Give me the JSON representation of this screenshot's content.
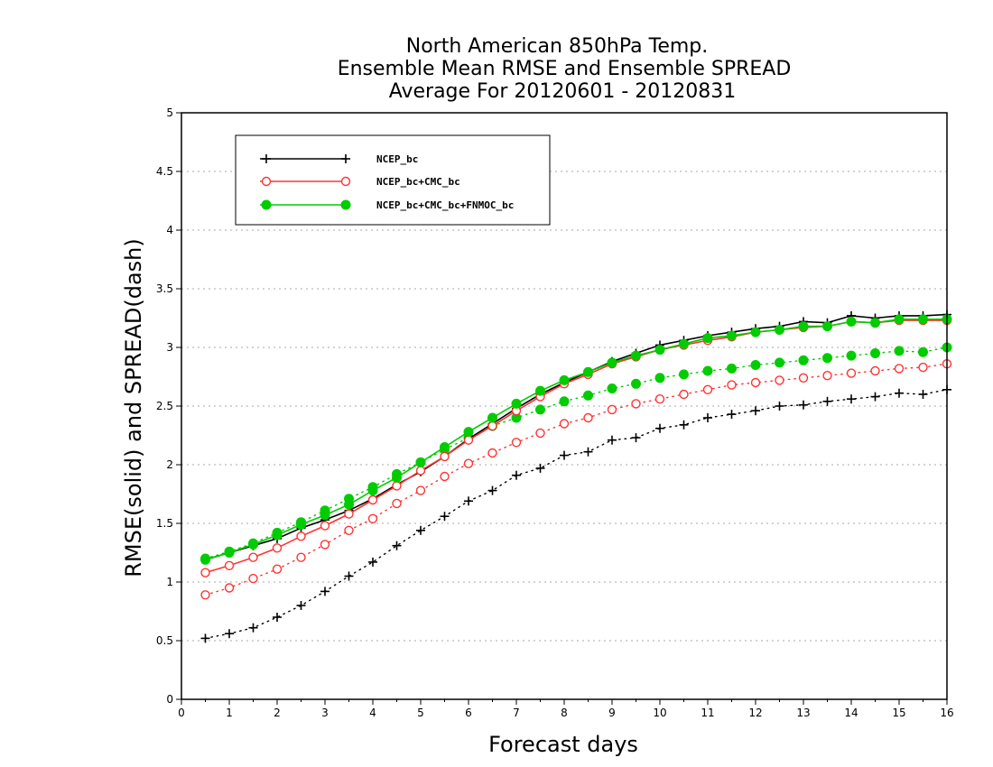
{
  "chart_data": {
    "type": "line",
    "title": [
      "North American 850hPa Temp.",
      "Ensemble Mean RMSE and Ensemble SPREAD",
      "Average For 20120601 - 20120831"
    ],
    "xlabel": "Forecast days",
    "ylabel": "RMSE(solid) and SPREAD(dash)",
    "xlim": [
      0,
      16
    ],
    "ylim": [
      0,
      5
    ],
    "xticks": [
      "0",
      "1",
      "2",
      "3",
      "4",
      "5",
      "6",
      "7",
      "8",
      "9",
      "10",
      "11",
      "12",
      "13",
      "14",
      "15",
      "16"
    ],
    "yticks": [
      "0",
      "0.5",
      "1",
      "1.5",
      "2",
      "2.5",
      "3",
      "3.5",
      "4",
      "4.5",
      "5"
    ],
    "grid": true,
    "legend_position": "top-left",
    "x": [
      0.5,
      1,
      1.5,
      2,
      2.5,
      3,
      3.5,
      4,
      4.5,
      5,
      5.5,
      6,
      6.5,
      7,
      7.5,
      8,
      8.5,
      9,
      9.5,
      10,
      10.5,
      11,
      11.5,
      12,
      12.5,
      13,
      13.5,
      14,
      14.5,
      15,
      15.5,
      16
    ],
    "series": [
      {
        "name": "NCEP_bc",
        "color": "#000000",
        "marker": "plus",
        "rmse": [
          1.19,
          1.25,
          1.31,
          1.37,
          1.46,
          1.53,
          1.61,
          1.71,
          1.83,
          1.94,
          2.07,
          2.22,
          2.35,
          2.48,
          2.6,
          2.7,
          2.79,
          2.88,
          2.95,
          3.02,
          3.06,
          3.1,
          3.13,
          3.16,
          3.18,
          3.22,
          3.21,
          3.27,
          3.25,
          3.27,
          3.27,
          3.28
        ],
        "spread": [
          0.52,
          0.56,
          0.61,
          0.7,
          0.8,
          0.92,
          1.05,
          1.17,
          1.31,
          1.44,
          1.56,
          1.69,
          1.78,
          1.91,
          1.97,
          2.08,
          2.11,
          2.21,
          2.23,
          2.31,
          2.34,
          2.4,
          2.43,
          2.46,
          2.5,
          2.51,
          2.54,
          2.56,
          2.58,
          2.61,
          2.6,
          2.64
        ]
      },
      {
        "name": "NCEP_bc+CMC_bc",
        "color": "#ff3333",
        "marker": "circle",
        "rmse": [
          1.08,
          1.14,
          1.21,
          1.29,
          1.39,
          1.48,
          1.58,
          1.7,
          1.82,
          1.95,
          2.07,
          2.21,
          2.33,
          2.46,
          2.58,
          2.69,
          2.77,
          2.86,
          2.92,
          2.98,
          3.02,
          3.06,
          3.09,
          3.13,
          3.15,
          3.17,
          3.18,
          3.22,
          3.21,
          3.23,
          3.23,
          3.23
        ],
        "spread": [
          0.89,
          0.95,
          1.03,
          1.11,
          1.21,
          1.32,
          1.44,
          1.54,
          1.67,
          1.78,
          1.9,
          2.01,
          2.1,
          2.19,
          2.27,
          2.35,
          2.4,
          2.47,
          2.52,
          2.56,
          2.6,
          2.64,
          2.68,
          2.7,
          2.72,
          2.74,
          2.76,
          2.78,
          2.8,
          2.82,
          2.83,
          2.86
        ]
      },
      {
        "name": "NCEP_bc+CMC_bc+FNMOC_bc",
        "color": "#00cc00",
        "marker": "dot",
        "rmse": [
          1.19,
          1.25,
          1.32,
          1.4,
          1.49,
          1.57,
          1.66,
          1.78,
          1.89,
          2.02,
          2.15,
          2.28,
          2.4,
          2.52,
          2.63,
          2.72,
          2.79,
          2.87,
          2.93,
          2.98,
          3.03,
          3.08,
          3.1,
          3.13,
          3.15,
          3.18,
          3.18,
          3.22,
          3.21,
          3.24,
          3.24,
          3.24
        ],
        "spread": [
          1.2,
          1.26,
          1.33,
          1.42,
          1.51,
          1.61,
          1.71,
          1.81,
          1.92,
          2.02,
          2.13,
          2.23,
          2.33,
          2.4,
          2.47,
          2.54,
          2.59,
          2.65,
          2.69,
          2.74,
          2.77,
          2.8,
          2.82,
          2.85,
          2.87,
          2.89,
          2.91,
          2.93,
          2.95,
          2.97,
          2.96,
          3.0
        ]
      }
    ]
  }
}
